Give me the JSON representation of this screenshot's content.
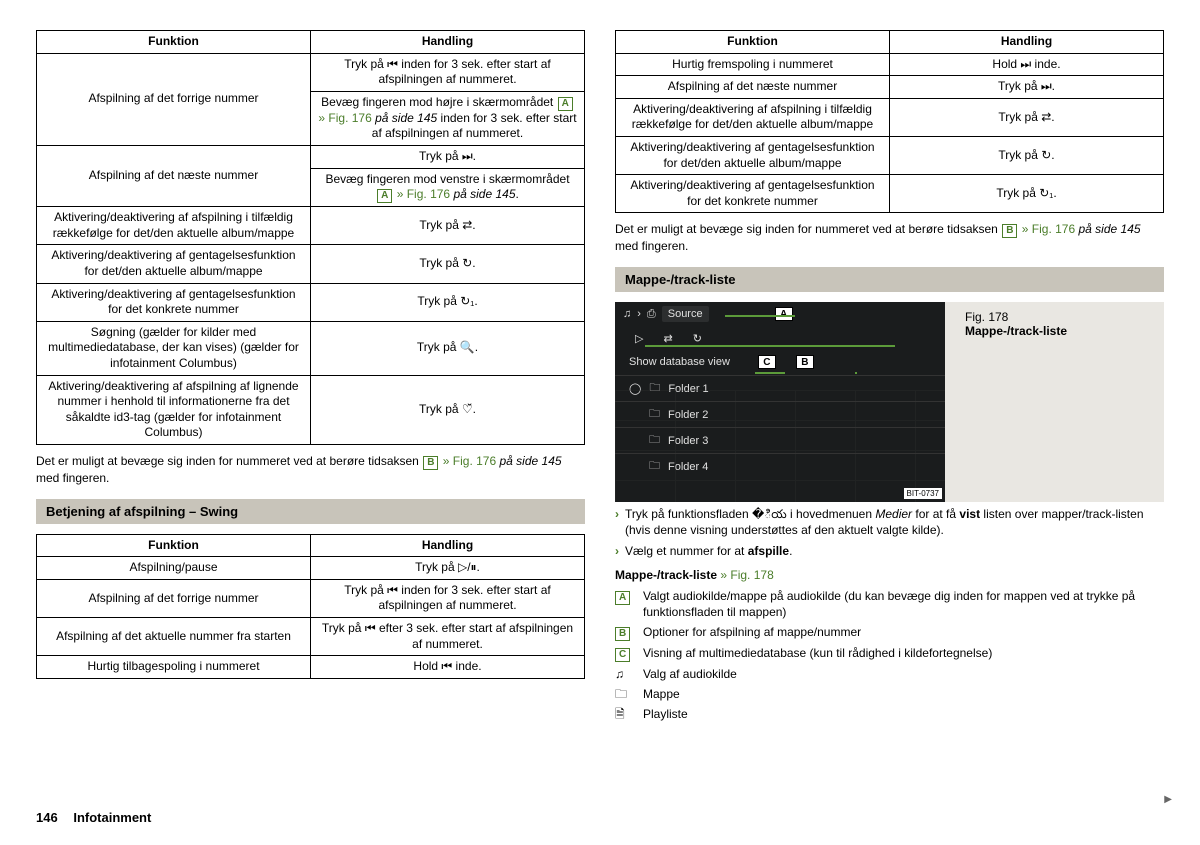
{
  "page": {
    "number": "146",
    "section": "Infotainment"
  },
  "left": {
    "table1": {
      "headers": [
        "Funktion",
        "Handling"
      ],
      "rows": [
        {
          "func": "Afspilning af det forrige nummer",
          "actions": [
            {
              "parts": [
                "Tryk på ⏮ inden for 3 sek. efter start af afspilningen af nummeret."
              ]
            },
            {
              "parts": [
                "Bevæg fingeren mod højre i skærmområdet ",
                {
                  "ref": "A"
                },
                " ",
                {
                  "link": "» Fig. 176"
                },
                " ",
                {
                  "em": "på side 145"
                },
                " inden for 3 sek. efter start af afspilningen af nummeret."
              ]
            }
          ]
        },
        {
          "func": "Afspilning af det næste nummer",
          "actions": [
            {
              "parts": [
                "Tryk på ⏭."
              ]
            },
            {
              "parts": [
                "Bevæg fingeren mod venstre i skærmområdet ",
                {
                  "ref": "A"
                },
                " ",
                {
                  "link": "» Fig. 176"
                },
                " ",
                {
                  "em": "på side 145"
                },
                "."
              ]
            }
          ]
        },
        {
          "func": "Aktivering/deaktivering af afspilning i tilfældig rækkefølge for det/den aktuelle album/mappe",
          "actions": [
            {
              "parts": [
                "Tryk på ⇄."
              ]
            }
          ]
        },
        {
          "func": "Aktivering/deaktivering af gentagelsesfunktion for det/den aktuelle album/mappe",
          "actions": [
            {
              "parts": [
                "Tryk på ↻."
              ]
            }
          ]
        },
        {
          "func": "Aktivering/deaktivering af gentagelsesfunktion for det konkrete nummer",
          "actions": [
            {
              "parts": [
                "Tryk på ↻₁."
              ]
            }
          ]
        },
        {
          "func": "Søgning (gælder for kilder med multimediedatabase, der kan vises) (gælder for infotainment Columbus)",
          "actions": [
            {
              "parts": [
                "Tryk på 🔍."
              ]
            }
          ]
        },
        {
          "func": "Aktivering/deaktivering af afspilning af lignende nummer i henhold til informationerne fra det såkaldte id3-tag (gælder for infotainment Columbus)",
          "actions": [
            {
              "parts": [
                "Tryk på ♡̆."
              ]
            }
          ]
        }
      ]
    },
    "para1": {
      "parts": [
        "Det er muligt at bevæge sig inden for nummeret ved at berøre tidsaksen ",
        {
          "ref": "B"
        },
        " ",
        {
          "link": "» Fig. 176"
        },
        " ",
        {
          "em": "på side 145"
        },
        " med fingeren."
      ]
    },
    "heading2": "Betjening af afspilning – Swing",
    "table2": {
      "headers": [
        "Funktion",
        "Handling"
      ],
      "rows": [
        {
          "func": "Afspilning/pause",
          "action": "Tryk på ▷/⏸."
        },
        {
          "func": "Afspilning af det forrige nummer",
          "action": "Tryk på ⏮ inden for 3 sek. efter start af afspilningen af nummeret."
        },
        {
          "func": "Afspilning af det aktuelle nummer fra starten",
          "action": "Tryk på ⏮ efter 3 sek. efter start af afspilningen af nummeret."
        },
        {
          "func": "Hurtig tilbagespoling i nummeret",
          "action": "Hold ⏮ inde."
        }
      ]
    }
  },
  "right": {
    "table3": {
      "headers": [
        "Funktion",
        "Handling"
      ],
      "rows": [
        {
          "func": "Hurtig fremspoling i nummeret",
          "action": "Hold ⏭ inde."
        },
        {
          "func": "Afspilning af det næste nummer",
          "action": "Tryk på ⏭."
        },
        {
          "func": "Aktivering/deaktivering af afspilning i tilfældig rækkefølge for det/den aktuelle album/mappe",
          "action": "Tryk på ⇄."
        },
        {
          "func": "Aktivering/deaktivering af gentagelsesfunktion for det/den aktuelle album/mappe",
          "action": "Tryk på ↻."
        },
        {
          "func": "Aktivering/deaktivering af gentagelsesfunktion for det konkrete nummer",
          "action": "Tryk på ↻₁."
        }
      ]
    },
    "para2": {
      "parts": [
        "Det er muligt at bevæge sig inden for nummeret ved at berøre tidsaksen ",
        {
          "ref": "B"
        },
        " ",
        {
          "link": "» Fig. 176"
        },
        " ",
        {
          "em": "på side 145"
        },
        " med fingeren."
      ]
    },
    "heading3": "Mappe-/track-liste",
    "figure": {
      "num": "Fig. 178",
      "title": "Mappe-/track-liste",
      "source": "Source",
      "dbview": "Show database view",
      "folders": [
        "Folder 1",
        "Folder 2",
        "Folder 3",
        "Folder 4"
      ],
      "badge": "BIT-0737"
    },
    "bullets": [
      {
        "parts": [
          "Tryk på funktionsfladen �ియ i hovedmenuen ",
          {
            "em": "Medier"
          },
          " for at få ",
          {
            "b": "vist"
          },
          " listen over mapper/track-listen (hvis denne visning understøttes af den aktuelt valgte kilde)."
        ]
      },
      {
        "parts": [
          "Vælg et nummer for at ",
          {
            "b": "afspille"
          },
          "."
        ]
      }
    ],
    "legendTitle": {
      "parts": [
        {
          "b": "Mappe-/track-liste"
        },
        " ",
        {
          "link": "» Fig. 178"
        }
      ]
    },
    "legend": [
      {
        "ref": "A",
        "text": "Valgt audiokilde/mappe på audiokilde (du kan bevæge dig inden for mappen ved at trykke på funktionsfladen til mappen)"
      },
      {
        "ref": "B",
        "text": "Optioner for afspilning af mappe/nummer"
      },
      {
        "ref": "C",
        "text": "Visning af multimediedatabase (kun til rådighed i kildefortegnelse)"
      }
    ],
    "iconLegend": [
      {
        "icon": "♫",
        "text": "Valg af audiokilde"
      },
      {
        "icon": "🗀",
        "text": "Mappe"
      },
      {
        "icon": "🗎",
        "text": "Playliste"
      }
    ]
  }
}
